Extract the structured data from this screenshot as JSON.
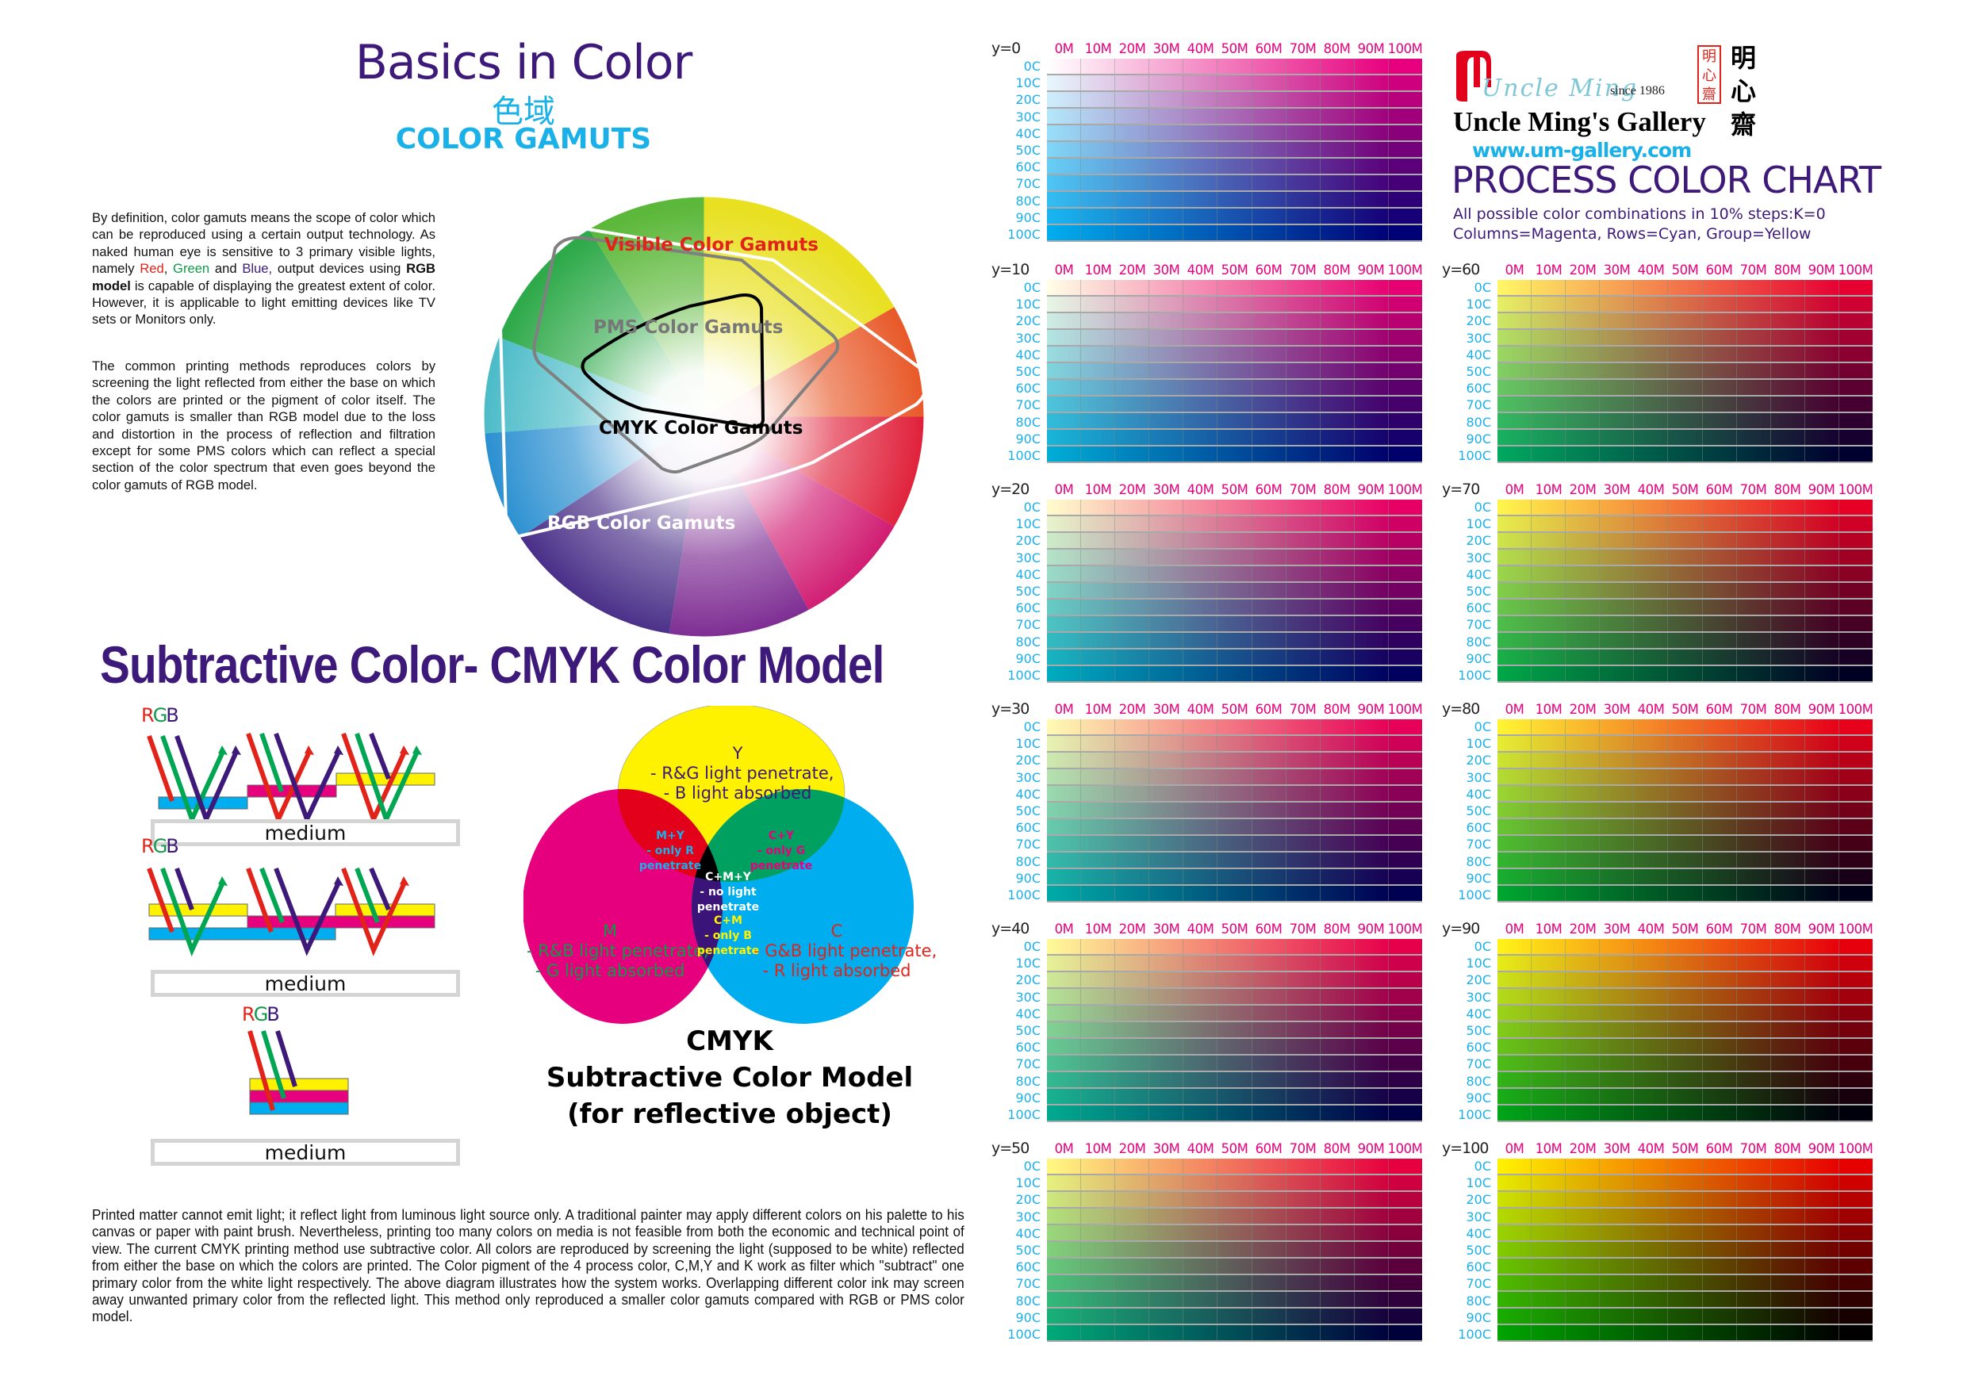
{
  "left": {
    "title": "Basics in Color",
    "title_cn": "色域",
    "subtitle": "COLOR GAMUTS",
    "paragraph1": {
      "before": "By definition, color gamuts means the scope of color which can be reproduced using a certain output technology. As naked human eye is sensitive to 3 primary visible lights, namely ",
      "red": "Red",
      "comma": ", ",
      "green": "Green",
      "and": " and ",
      "blue": "Blue,",
      "mid": " output devices using ",
      "bold": "RGB model",
      "after": " is capable of displaying the greatest extent of color. However, it is applicable to light emitting devices like TV sets or Monitors only."
    },
    "paragraph2": "The common printing methods reproduces colors by screening the light reflected from either the base on which the colors are printed or the pigment of color itself. The color gamuts is smaller than RGB model due to the loss and distortion in the process of reflection and filtration except for some PMS colors which can reflect a special section of the color spectrum that even goes beyond the color gamuts of RGB model.",
    "gamut_labels": {
      "visible": "Visible Color Gamuts",
      "pms": "PMS Color Gamuts",
      "cmyk": "CMYK Color Gamuts",
      "rgb": "RGB Color Gamuts"
    },
    "subtractive_title": "Subtractive Color- CMYK Color Model",
    "light_diagram": {
      "rgb_r": "R",
      "rgb_g": "G",
      "rgb_b": "B",
      "medium": "medium"
    },
    "venn": {
      "y": {
        "name": "Y",
        "line1": "- R&G light penetrate,",
        "line2": "- B light absorbed"
      },
      "m": {
        "name": "M",
        "line1": "- R&B light penetrate,",
        "line2": "- G light absorbed"
      },
      "c": {
        "name": "C",
        "line1": "- G&B light penetrate,",
        "line2": "- R light absorbed"
      },
      "my": {
        "name": "M+Y",
        "line1": "- only R",
        "line2": "penetrate"
      },
      "cy": {
        "name": "C+Y",
        "line1": "- only G",
        "line2": "penetrate"
      },
      "cm": {
        "name": "C+M",
        "line1": "- only B",
        "line2": "penetrate"
      },
      "cmy": {
        "name": "C+M+Y",
        "line1": "- no light",
        "line2": "penetrate"
      }
    },
    "venn_caption": {
      "line1": "CMYK",
      "line2": "Subtractive Color Model",
      "line3": "(for reflective object)"
    },
    "paragraph3": "Printed matter cannot emit light; it reflect light from luminous light source only.  A traditional painter may apply different colors on his palette to his canvas or paper with paint brush. Nevertheless, printing too many colors on media is not feasible from both the economic and  technical point of view. The current CMYK printing method use subtractive color. All colors are reproduced by screening the light (supposed to be white) reflected from either the base on which the colors are printed. The Color pigment of the 4 process color, C,M,Y and K work as filter which \"subtract\" one primary color from the white light respectively. The above diagram illustrates how the system works.  Overlapping different color ink may screen away unwanted primary color from the reflected light. This method only reproduced a smaller color gamuts compared with RGB or PMS color model."
  },
  "brand": {
    "script_name": "Uncle Ming",
    "since": "since 1986",
    "seal_chars": [
      "明",
      "心",
      "齋"
    ],
    "cn_name": [
      "明",
      "心",
      "齋"
    ],
    "gallery_name": "Uncle Ming's Gallery",
    "website": "www.um-gallery.com",
    "chart_title": "PROCESS COLOR CHART",
    "chart_sub1": "All possible color combinations in 10% steps:K=0",
    "chart_sub2": "Columns=Magenta, Rows=Cyan, Group=Yellow"
  },
  "colors": {
    "purple": "#3d1a7a",
    "cyan": "#00aeef",
    "magenta": "#e6007e",
    "yellow": "#fff200",
    "red": "#e2231a",
    "green": "#00a651",
    "blue_violet": "#3d1a7a"
  },
  "chart_data": {
    "type": "heatmap",
    "title": "PROCESS COLOR CHART",
    "subtitle": "All possible color combinations in 10% steps:K=0",
    "description": "Columns=Magenta, Rows=Cyan, Group=Yellow",
    "k": 0,
    "columns": [
      "0M",
      "10M",
      "20M",
      "30M",
      "40M",
      "50M",
      "60M",
      "70M",
      "80M",
      "90M",
      "100M"
    ],
    "rows": [
      "0C",
      "10C",
      "20C",
      "30C",
      "40C",
      "50C",
      "60C",
      "70C",
      "80C",
      "90C",
      "100C"
    ],
    "groups": [
      {
        "label": "y=0",
        "yellow": 0,
        "col": 0,
        "slot": 0
      },
      {
        "label": "y=10",
        "yellow": 10,
        "col": 0,
        "slot": 1
      },
      {
        "label": "y=20",
        "yellow": 20,
        "col": 0,
        "slot": 2
      },
      {
        "label": "y=30",
        "yellow": 30,
        "col": 0,
        "slot": 3
      },
      {
        "label": "y=40",
        "yellow": 40,
        "col": 0,
        "slot": 4
      },
      {
        "label": "y=50",
        "yellow": 50,
        "col": 0,
        "slot": 5
      },
      {
        "label": "y=60",
        "yellow": 60,
        "col": 1,
        "slot": 1
      },
      {
        "label": "y=70",
        "yellow": 70,
        "col": 1,
        "slot": 2
      },
      {
        "label": "y=80",
        "yellow": 80,
        "col": 1,
        "slot": 3
      },
      {
        "label": "y=90",
        "yellow": 90,
        "col": 1,
        "slot": 4
      },
      {
        "label": "y=100",
        "yellow": 100,
        "col": 1,
        "slot": 5
      }
    ]
  }
}
